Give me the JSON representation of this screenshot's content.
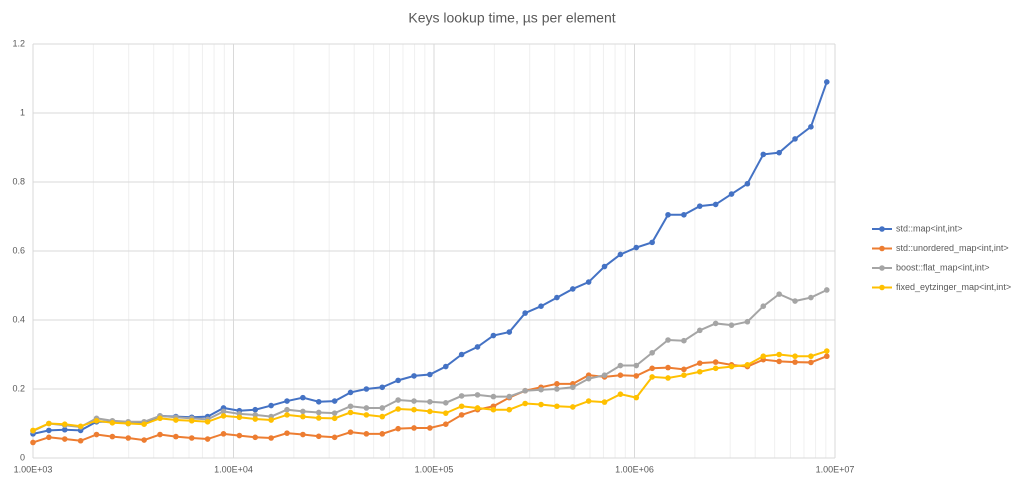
{
  "chart_data": {
    "type": "line",
    "title": "Keys lookup time, µs per element",
    "x_log_scale": true,
    "grid": true,
    "x_minor_grid": true,
    "legend": "right",
    "xlim": [
      1000,
      10000000
    ],
    "xticks": [
      {
        "value": 1000,
        "label": "1.00E+03"
      },
      {
        "value": 10000,
        "label": "1.00E+04"
      },
      {
        "value": 100000,
        "label": "1.00E+05"
      },
      {
        "value": 1000000,
        "label": "1.00E+06"
      },
      {
        "value": 10000000,
        "label": "1.00E+07"
      }
    ],
    "ylim": [
      0,
      1.2
    ],
    "yticks": [
      0,
      0.2,
      0.4,
      0.6,
      0.8,
      1,
      1.2
    ],
    "x": [
      1000,
      1200,
      1440,
      1728,
      2074,
      2488,
      2986,
      3583,
      4300,
      5160,
      6192,
      7430,
      8916,
      10699,
      12839,
      15407,
      18488,
      22186,
      26623,
      31948,
      38338,
      46005,
      55206,
      66247,
      79497,
      95396,
      114475,
      137371,
      164845,
      197814,
      237376,
      284852,
      341822,
      410186,
      492224,
      590668,
      708802,
      850562,
      1020675,
      1224810,
      1469772,
      1763726,
      2116471,
      2539765,
      3047718,
      3657262,
      4388714,
      5266457,
      6319749,
      7583698,
      9100438
    ],
    "series": [
      {
        "name": "std::map<int,int>",
        "color": "#4472c4",
        "values": [
          0.07,
          0.08,
          0.082,
          0.08,
          0.105,
          0.105,
          0.1,
          0.1,
          0.122,
          0.12,
          0.118,
          0.12,
          0.145,
          0.137,
          0.14,
          0.152,
          0.165,
          0.175,
          0.163,
          0.165,
          0.19,
          0.2,
          0.205,
          0.225,
          0.238,
          0.242,
          0.265,
          0.3,
          0.322,
          0.355,
          0.365,
          0.42,
          0.44,
          0.465,
          0.49,
          0.51,
          0.555,
          0.59,
          0.61,
          0.625,
          0.705,
          0.705,
          0.73,
          0.735,
          0.765,
          0.795,
          0.88,
          0.885,
          0.925,
          0.96,
          1.09
        ]
      },
      {
        "name": "std::unordered_map<int,int>",
        "color": "#ed7d31",
        "values": [
          0.045,
          0.06,
          0.055,
          0.05,
          0.068,
          0.062,
          0.058,
          0.052,
          0.068,
          0.062,
          0.058,
          0.055,
          0.07,
          0.065,
          0.06,
          0.058,
          0.072,
          0.068,
          0.063,
          0.06,
          0.075,
          0.07,
          0.07,
          0.085,
          0.087,
          0.087,
          0.098,
          0.125,
          0.14,
          0.15,
          0.175,
          0.195,
          0.205,
          0.215,
          0.215,
          0.24,
          0.235,
          0.24,
          0.238,
          0.26,
          0.262,
          0.257,
          0.275,
          0.278,
          0.27,
          0.265,
          0.285,
          0.28,
          0.278,
          0.277,
          0.295
        ]
      },
      {
        "name": "boost::flat_map<int,int>",
        "color": "#a5a5a5",
        "values": [
          0.078,
          0.1,
          0.095,
          0.09,
          0.115,
          0.108,
          0.105,
          0.105,
          0.122,
          0.118,
          0.115,
          0.112,
          0.135,
          0.128,
          0.125,
          0.12,
          0.14,
          0.135,
          0.132,
          0.13,
          0.15,
          0.145,
          0.145,
          0.168,
          0.165,
          0.163,
          0.16,
          0.18,
          0.183,
          0.178,
          0.178,
          0.195,
          0.198,
          0.2,
          0.205,
          0.23,
          0.24,
          0.268,
          0.268,
          0.305,
          0.342,
          0.34,
          0.37,
          0.39,
          0.385,
          0.395,
          0.44,
          0.475,
          0.455,
          0.465,
          0.487
        ]
      },
      {
        "name": "fixed_eytzinger_map<int,int>",
        "color": "#ffc000",
        "values": [
          0.08,
          0.1,
          0.098,
          0.092,
          0.108,
          0.102,
          0.1,
          0.098,
          0.115,
          0.11,
          0.108,
          0.105,
          0.122,
          0.118,
          0.113,
          0.11,
          0.125,
          0.12,
          0.116,
          0.115,
          0.132,
          0.125,
          0.12,
          0.142,
          0.14,
          0.135,
          0.13,
          0.15,
          0.145,
          0.14,
          0.14,
          0.158,
          0.155,
          0.15,
          0.148,
          0.165,
          0.162,
          0.185,
          0.175,
          0.235,
          0.232,
          0.24,
          0.25,
          0.26,
          0.265,
          0.27,
          0.295,
          0.3,
          0.295,
          0.295,
          0.31
        ]
      }
    ]
  }
}
